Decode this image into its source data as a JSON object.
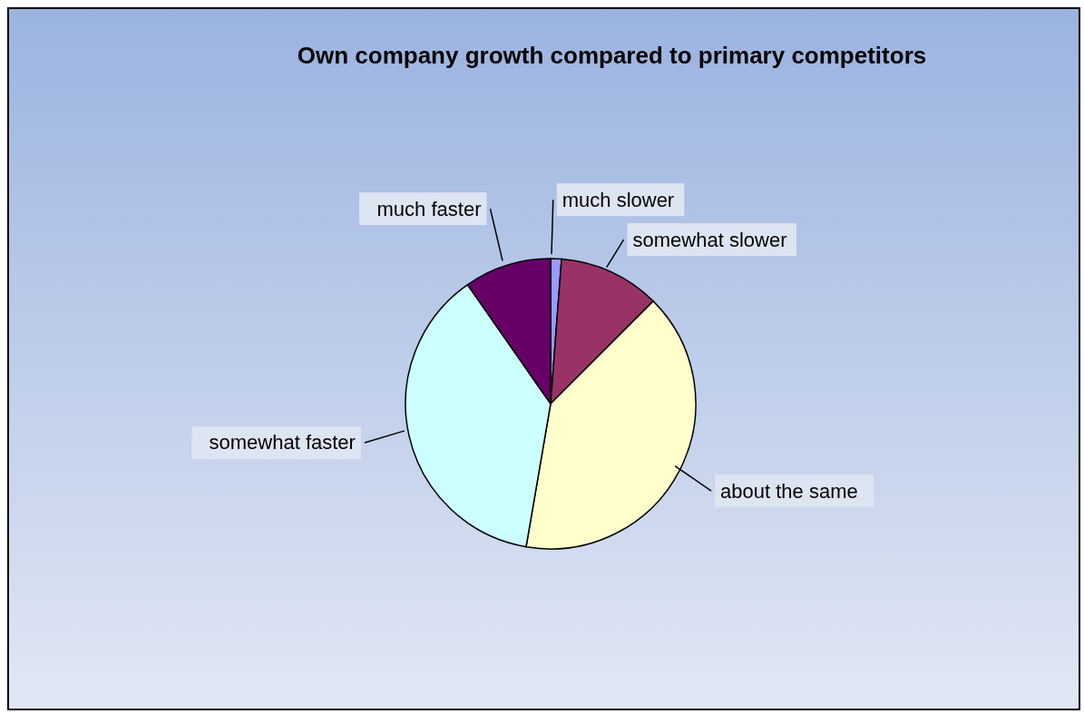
{
  "chart_data": {
    "type": "pie",
    "title": "Own company growth compared to primary competitors",
    "categories": [
      "much slower",
      "somewhat slower",
      "about the same",
      "somewhat faster",
      "much faster"
    ],
    "values": [
      1.2,
      11.3,
      40.2,
      37.6,
      9.7
    ],
    "colors": [
      "#9999ff",
      "#993366",
      "#ffffcc",
      "#ccffff",
      "#660066"
    ]
  }
}
